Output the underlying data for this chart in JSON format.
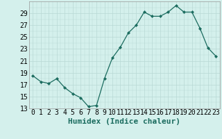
{
  "x": [
    0,
    1,
    2,
    3,
    4,
    5,
    6,
    7,
    8,
    9,
    10,
    11,
    12,
    13,
    14,
    15,
    16,
    17,
    18,
    19,
    20,
    21,
    22,
    23
  ],
  "y": [
    18.5,
    17.5,
    17.2,
    18.0,
    16.5,
    15.5,
    14.8,
    13.3,
    13.5,
    18.0,
    21.5,
    23.3,
    25.7,
    27.0,
    29.2,
    28.5,
    28.5,
    29.2,
    30.3,
    29.2,
    29.2,
    26.5,
    23.2,
    21.8
  ],
  "line_color": "#1a6b5e",
  "marker_color": "#1a6b5e",
  "bg_color": "#d4f0ec",
  "grid_color": "#b8d8d4",
  "xlabel": "Humidex (Indice chaleur)",
  "xlabel_fontsize": 8,
  "tick_fontsize": 7,
  "ylim": [
    13,
    31
  ],
  "yticks": [
    13,
    15,
    17,
    19,
    21,
    23,
    25,
    27,
    29
  ],
  "xlim": [
    -0.5,
    23.5
  ],
  "xticks": [
    0,
    1,
    2,
    3,
    4,
    5,
    6,
    7,
    8,
    9,
    10,
    11,
    12,
    13,
    14,
    15,
    16,
    17,
    18,
    19,
    20,
    21,
    22,
    23
  ]
}
